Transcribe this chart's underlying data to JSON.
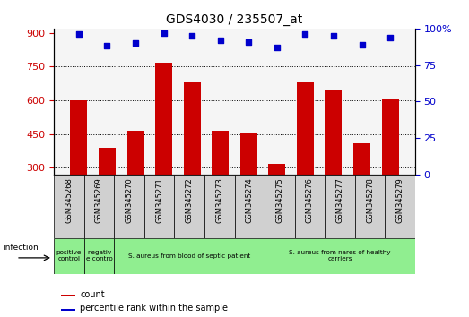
{
  "title": "GDS4030 / 235507_at",
  "samples": [
    "GSM345268",
    "GSM345269",
    "GSM345270",
    "GSM345271",
    "GSM345272",
    "GSM345273",
    "GSM345274",
    "GSM345275",
    "GSM345276",
    "GSM345277",
    "GSM345278",
    "GSM345279"
  ],
  "counts": [
    600,
    390,
    465,
    768,
    680,
    465,
    455,
    318,
    680,
    645,
    410,
    605
  ],
  "percentile_ranks": [
    96,
    88,
    90,
    97,
    95,
    92,
    91,
    87,
    96,
    95,
    89,
    94
  ],
  "bar_color": "#cc0000",
  "dot_color": "#0000cc",
  "ylim_left": [
    270,
    920
  ],
  "ylim_right": [
    0,
    100
  ],
  "yticks_left": [
    300,
    450,
    600,
    750,
    900
  ],
  "yticks_right": [
    0,
    25,
    50,
    75,
    100
  ],
  "grid_lines": [
    300,
    450,
    600,
    750
  ],
  "infection_groups": [
    {
      "label": "positive\ncontrol",
      "start": 0,
      "end": 1,
      "color": "#90ee90"
    },
    {
      "label": "negativ\ne contro",
      "start": 1,
      "end": 2,
      "color": "#90ee90"
    },
    {
      "label": "S. aureus from blood of septic patient",
      "start": 2,
      "end": 7,
      "color": "#90ee90"
    },
    {
      "label": "S. aureus from nares of healthy\ncarriers",
      "start": 7,
      "end": 12,
      "color": "#90ee90"
    }
  ],
  "legend_count_label": "count",
  "legend_pct_label": "percentile rank within the sample",
  "infection_label": "infection",
  "xtick_bg_color": "#d0d0d0",
  "background_color": "#ffffff"
}
